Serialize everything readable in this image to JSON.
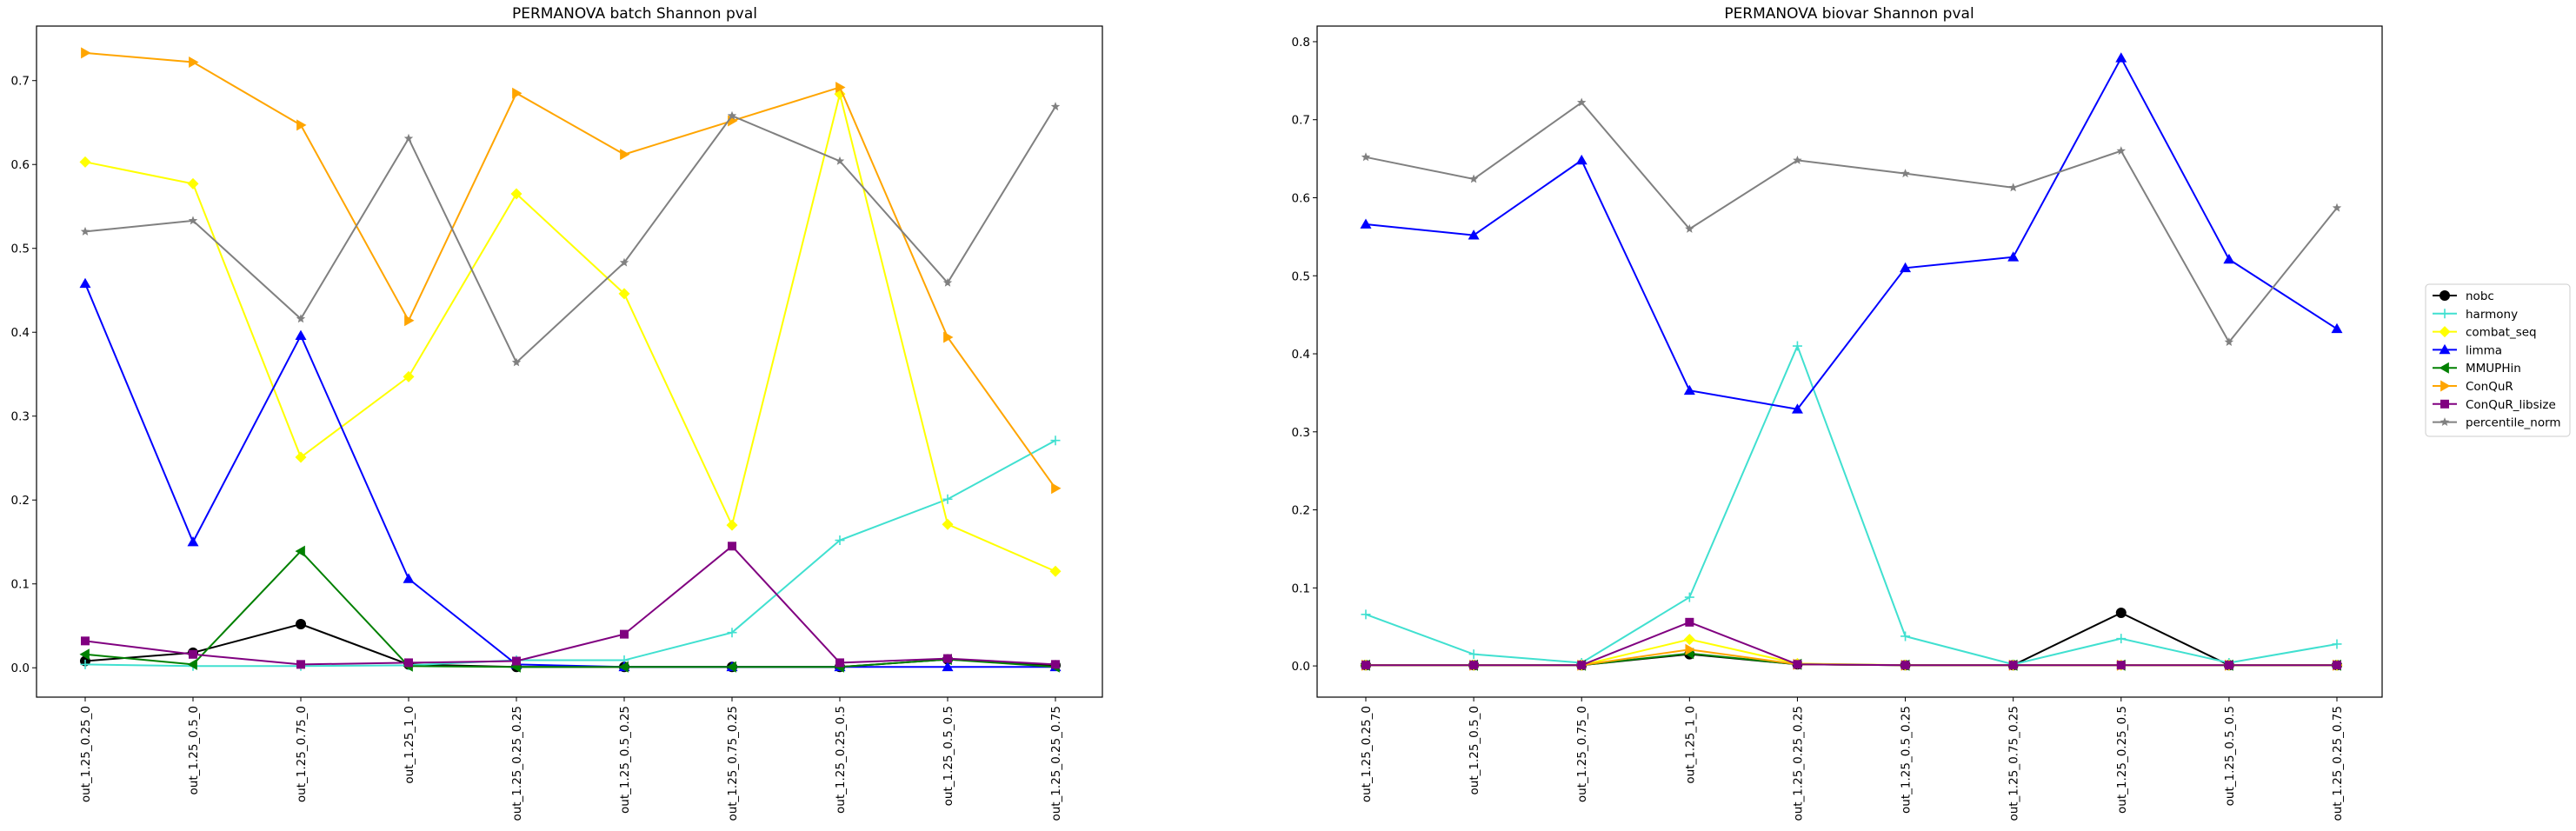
{
  "chart_data": [
    {
      "type": "line",
      "title": "PERMANOVA batch Shannon pval",
      "xlabel": "",
      "ylabel": "",
      "categories": [
        "out_1.25_0.25_0",
        "out_1.25_0.5_0",
        "out_1.25_0.75_0",
        "out_1.25_1_0",
        "out_1.25_0.25_0.25",
        "out_1.25_0.5_0.25",
        "out_1.25_0.75_0.25",
        "out_1.25_0.25_0.5",
        "out_1.25_0.5_0.5",
        "out_1.25_0.25_0.75"
      ],
      "ylim": [
        -0.035,
        0.765
      ],
      "yticks": [
        "0.0",
        "0.1",
        "0.2",
        "0.3",
        "0.4",
        "0.5",
        "0.6",
        "0.7"
      ],
      "grid": false,
      "series": [
        {
          "name": "nobc",
          "color": "#000000",
          "marker": "circle",
          "values": [
            0.008,
            0.018,
            0.052,
            0.004,
            0.001,
            0.001,
            0.001,
            0.001,
            0.01,
            0.003
          ]
        },
        {
          "name": "harmony",
          "color": "#40e0d0",
          "marker": "plus",
          "values": [
            0.004,
            0.002,
            0.002,
            0.003,
            0.009,
            0.009,
            0.042,
            0.152,
            0.201,
            0.271
          ]
        },
        {
          "name": "combat_seq",
          "color": "#ffff00",
          "marker": "diamond",
          "values": [
            0.603,
            0.577,
            0.251,
            0.347,
            0.565,
            0.446,
            0.17,
            0.684,
            0.171,
            0.115
          ]
        },
        {
          "name": "limma",
          "color": "#0000ff",
          "marker": "triangle-up",
          "values": [
            0.458,
            0.15,
            0.396,
            0.106,
            0.004,
            0.001,
            0.001,
            0.001,
            0.001,
            0.001
          ]
        },
        {
          "name": "MMUPHin",
          "color": "#008000",
          "marker": "triangle-left",
          "values": [
            0.016,
            0.004,
            0.139,
            0.002,
            0.001,
            0.001,
            0.001,
            0.001,
            0.01,
            0.001
          ]
        },
        {
          "name": "ConQuR",
          "color": "#ffa500",
          "marker": "triangle-right",
          "values": [
            0.733,
            0.722,
            0.647,
            0.414,
            0.685,
            0.612,
            0.652,
            0.692,
            0.394,
            0.214
          ]
        },
        {
          "name": "ConQuR_libsize",
          "color": "#800080",
          "marker": "square",
          "values": [
            0.032,
            0.016,
            0.004,
            0.006,
            0.008,
            0.04,
            0.145,
            0.006,
            0.011,
            0.004
          ]
        },
        {
          "name": "percentile_norm",
          "color": "#808080",
          "marker": "star",
          "values": [
            0.52,
            0.533,
            0.416,
            0.631,
            0.364,
            0.483,
            0.658,
            0.604,
            0.459,
            0.669
          ]
        }
      ]
    },
    {
      "type": "line",
      "title": "PERMANOVA biovar Shannon pval",
      "xlabel": "",
      "ylabel": "",
      "categories": [
        "out_1.25_0.25_0",
        "out_1.25_0.5_0",
        "out_1.25_0.75_0",
        "out_1.25_1_0",
        "out_1.25_0.25_0.25",
        "out_1.25_0.5_0.25",
        "out_1.25_0.75_0.25",
        "out_1.25_0.25_0.5",
        "out_1.25_0.5_0.5",
        "out_1.25_0.25_0.75"
      ],
      "ylim": [
        -0.04,
        0.82
      ],
      "yticks": [
        "0.0",
        "0.1",
        "0.2",
        "0.3",
        "0.4",
        "0.5",
        "0.6",
        "0.7",
        "0.8"
      ],
      "grid": false,
      "series": [
        {
          "name": "nobc",
          "color": "#000000",
          "marker": "circle",
          "values": [
            0.001,
            0.001,
            0.001,
            0.015,
            0.002,
            0.001,
            0.001,
            0.068,
            0.001,
            0.001
          ]
        },
        {
          "name": "harmony",
          "color": "#40e0d0",
          "marker": "plus",
          "values": [
            0.066,
            0.015,
            0.004,
            0.088,
            0.41,
            0.038,
            0.002,
            0.035,
            0.004,
            0.028
          ]
        },
        {
          "name": "combat_seq",
          "color": "#ffff00",
          "marker": "diamond",
          "values": [
            0.001,
            0.001,
            0.001,
            0.034,
            0.003,
            0.001,
            0.001,
            0.001,
            0.001,
            0.001
          ]
        },
        {
          "name": "limma",
          "color": "#0000ff",
          "marker": "triangle-up",
          "values": [
            0.566,
            0.552,
            0.648,
            0.353,
            0.329,
            0.51,
            0.524,
            0.779,
            0.521,
            0.432
          ]
        },
        {
          "name": "MMUPHin",
          "color": "#008000",
          "marker": "triangle-left",
          "values": [
            0.001,
            0.001,
            0.001,
            0.016,
            0.002,
            0.001,
            0.001,
            0.001,
            0.001,
            0.001
          ]
        },
        {
          "name": "ConQuR",
          "color": "#ffa500",
          "marker": "triangle-right",
          "values": [
            0.001,
            0.001,
            0.001,
            0.021,
            0.002,
            0.001,
            0.001,
            0.001,
            0.001,
            0.001
          ]
        },
        {
          "name": "ConQuR_libsize",
          "color": "#800080",
          "marker": "square",
          "values": [
            0.001,
            0.001,
            0.001,
            0.056,
            0.002,
            0.001,
            0.001,
            0.001,
            0.001,
            0.001
          ]
        },
        {
          "name": "percentile_norm",
          "color": "#808080",
          "marker": "star",
          "values": [
            0.652,
            0.624,
            0.722,
            0.56,
            0.648,
            0.631,
            0.613,
            0.66,
            0.415,
            0.587
          ]
        }
      ]
    }
  ],
  "legend": {
    "position": "right",
    "entries": [
      "nobc",
      "harmony",
      "combat_seq",
      "limma",
      "MMUPHin",
      "ConQuR",
      "ConQuR_libsize",
      "percentile_norm"
    ]
  }
}
